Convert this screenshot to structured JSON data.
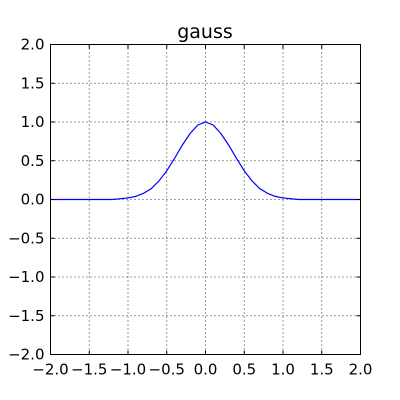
{
  "chart_data": {
    "type": "line",
    "title": "gauss",
    "xlabel": "",
    "ylabel": "",
    "xlim": [
      -2.0,
      2.0
    ],
    "ylim": [
      -2.0,
      2.0
    ],
    "grid": true,
    "x_ticks": [
      -2.0,
      -1.5,
      -1.0,
      -0.5,
      0.0,
      0.5,
      1.0,
      1.5,
      2.0
    ],
    "x_tick_labels": [
      "−2.0",
      "−1.5",
      "−1.0",
      "−0.5",
      "0.0",
      "0.5",
      "1.0",
      "1.5",
      "2.0"
    ],
    "y_ticks": [
      -2.0,
      -1.5,
      -1.0,
      -0.5,
      0.0,
      0.5,
      1.0,
      1.5,
      2.0
    ],
    "y_tick_labels": [
      "−2.0",
      "−1.5",
      "−1.0",
      "−0.5",
      "0.0",
      "0.5",
      "1.0",
      "1.5",
      "2.0"
    ],
    "series": [
      {
        "color": "#0000ff",
        "x": [
          -2.0,
          -1.8,
          -1.6,
          -1.4,
          -1.2,
          -1.0,
          -0.9,
          -0.8,
          -0.7,
          -0.6,
          -0.5,
          -0.4,
          -0.3,
          -0.2,
          -0.1,
          0.0,
          0.1,
          0.2,
          0.3,
          0.4,
          0.5,
          0.6,
          0.7,
          0.8,
          0.9,
          1.0,
          1.2,
          1.4,
          1.6,
          1.8,
          2.0
        ],
        "y": [
          0.0,
          0.0,
          0.0,
          0.0,
          0.0,
          0.02,
          0.04,
          0.08,
          0.14,
          0.24,
          0.37,
          0.53,
          0.7,
          0.85,
          0.96,
          1.0,
          0.96,
          0.85,
          0.7,
          0.53,
          0.37,
          0.24,
          0.14,
          0.08,
          0.04,
          0.02,
          0.0,
          0.0,
          0.0,
          0.0,
          0.0
        ]
      }
    ]
  }
}
